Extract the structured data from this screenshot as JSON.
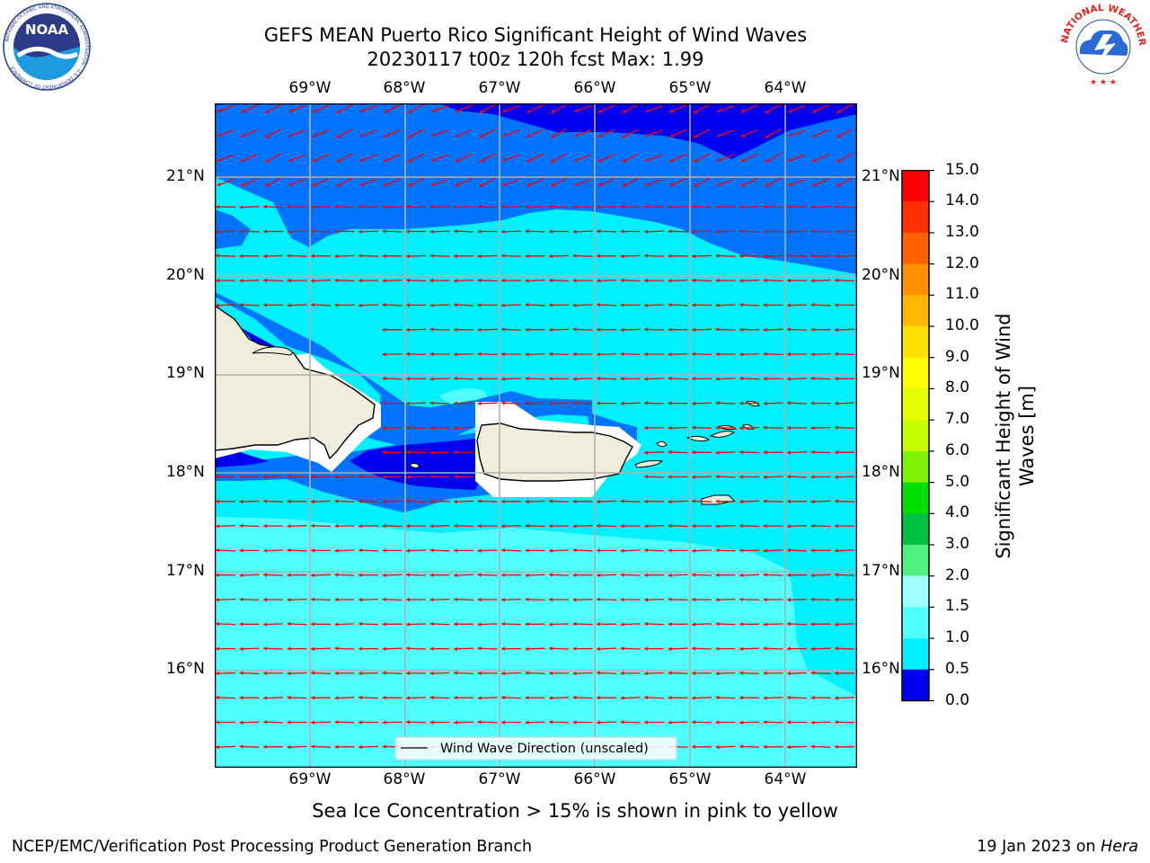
{
  "header": {
    "title": "GEFS MEAN Puerto Rico Significant Height of Wind Waves",
    "subtitle": "20230117 t00z 120h fcst   Max: 1.99"
  },
  "logos": {
    "left": {
      "text": "NOAA",
      "ring_text": "NATIONAL OCEANIC AND ATMOSPHERIC ADMINISTRATION · U.S. DEPARTMENT OF COMMERCE"
    },
    "right": {
      "ring_text": "NATIONAL WEATHER SERVICE"
    }
  },
  "map": {
    "lon_labels": [
      "69°W",
      "68°W",
      "67°W",
      "66°W",
      "65°W",
      "64°W"
    ],
    "lat_labels": [
      "21°N",
      "20°N",
      "19°N",
      "18°N",
      "17°N",
      "16°N"
    ],
    "legend_label": "Wind Wave Direction (unscaled)",
    "colors": {
      "ocean_0_05": "#0000f0",
      "ocean_05_10": "#0073ff",
      "ocean_10_15": "#00f0ff",
      "ocean_15_20": "#50ffff",
      "land": "#efeedc",
      "arrows": "#ff0000",
      "grid": "#b0b0b0"
    }
  },
  "colorbar": {
    "ticks": [
      "15.0",
      "14.0",
      "13.0",
      "12.0",
      "11.0",
      "10.0",
      "9.0",
      "8.0",
      "7.0",
      "6.0",
      "5.0",
      "4.0",
      "3.0",
      "2.0",
      "1.5",
      "1.0",
      "0.5",
      "0.0"
    ],
    "colors": [
      "#ff0000",
      "#ff3000",
      "#ff6000",
      "#ff9000",
      "#ffb800",
      "#ffe000",
      "#ffff00",
      "#e6ff00",
      "#c8ff00",
      "#80f000",
      "#00e000",
      "#00c040",
      "#50f080",
      "#a0ffff",
      "#50ffff",
      "#00f0ff",
      "#0073ff",
      "#0000f0"
    ],
    "label_line1": "Significant Height of Wind",
    "label_line2": "Waves [m]"
  },
  "footer": {
    "sea_ice_note": "Sea Ice Concentration > 15% is shown in pink to yellow",
    "branch": "NCEP/EMC/Verification Post Processing Product Generation Branch",
    "date_prefix": "19 Jan 2023 on ",
    "host": "Hera"
  }
}
